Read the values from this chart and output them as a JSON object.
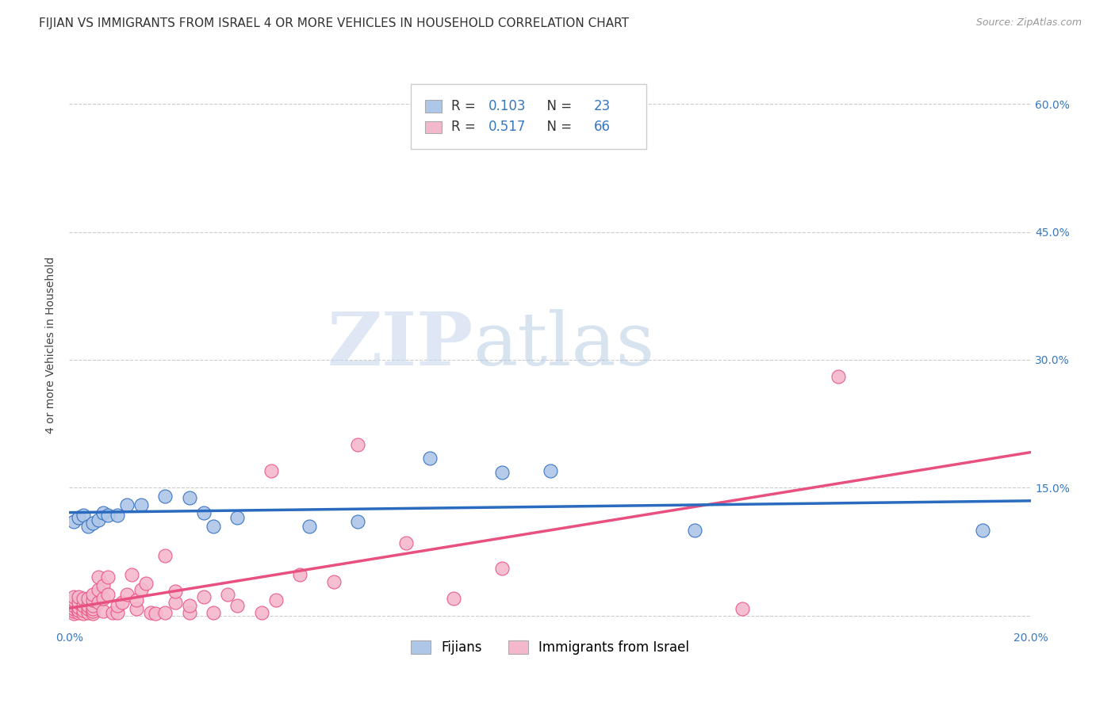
{
  "title": "FIJIAN VS IMMIGRANTS FROM ISRAEL 4 OR MORE VEHICLES IN HOUSEHOLD CORRELATION CHART",
  "source": "Source: ZipAtlas.com",
  "ylabel": "4 or more Vehicles in Household",
  "xlim": [
    0.0,
    0.2
  ],
  "ylim": [
    -0.015,
    0.65
  ],
  "xticks": [
    0.0,
    0.05,
    0.1,
    0.15,
    0.2
  ],
  "xticklabels": [
    "0.0%",
    "",
    "",
    "",
    "20.0%"
  ],
  "yticks_right": [
    0.0,
    0.15,
    0.3,
    0.45,
    0.6
  ],
  "yticklabels_right": [
    "",
    "15.0%",
    "30.0%",
    "45.0%",
    "60.0%"
  ],
  "fijian_R": 0.103,
  "fijian_N": 23,
  "israel_R": 0.517,
  "israel_N": 66,
  "fijian_color": "#aec6e8",
  "israel_color": "#f4b8cc",
  "fijian_line_color": "#2b6bbf",
  "israel_line_color": "#e85080",
  "fijian_x": [
    0.001,
    0.002,
    0.003,
    0.004,
    0.005,
    0.006,
    0.007,
    0.008,
    0.01,
    0.012,
    0.015,
    0.02,
    0.025,
    0.028,
    0.03,
    0.035,
    0.05,
    0.06,
    0.075,
    0.09,
    0.1,
    0.13,
    0.19
  ],
  "fijian_y": [
    0.11,
    0.115,
    0.118,
    0.105,
    0.108,
    0.112,
    0.12,
    0.118,
    0.118,
    0.13,
    0.13,
    0.14,
    0.138,
    0.12,
    0.105,
    0.115,
    0.105,
    0.11,
    0.185,
    0.168,
    0.17,
    0.1,
    0.1
  ],
  "israel_x": [
    0.001,
    0.001,
    0.001,
    0.001,
    0.001,
    0.001,
    0.002,
    0.002,
    0.002,
    0.002,
    0.002,
    0.003,
    0.003,
    0.003,
    0.003,
    0.004,
    0.004,
    0.004,
    0.004,
    0.005,
    0.005,
    0.005,
    0.005,
    0.005,
    0.005,
    0.006,
    0.006,
    0.006,
    0.007,
    0.007,
    0.007,
    0.008,
    0.008,
    0.009,
    0.01,
    0.01,
    0.011,
    0.012,
    0.013,
    0.014,
    0.014,
    0.015,
    0.016,
    0.017,
    0.018,
    0.02,
    0.02,
    0.022,
    0.022,
    0.025,
    0.025,
    0.028,
    0.03,
    0.033,
    0.035,
    0.04,
    0.042,
    0.043,
    0.048,
    0.055,
    0.06,
    0.07,
    0.08,
    0.09,
    0.14,
    0.16
  ],
  "israel_y": [
    0.002,
    0.005,
    0.008,
    0.012,
    0.018,
    0.022,
    0.003,
    0.006,
    0.01,
    0.015,
    0.022,
    0.002,
    0.006,
    0.012,
    0.02,
    0.003,
    0.008,
    0.012,
    0.02,
    0.002,
    0.005,
    0.008,
    0.012,
    0.018,
    0.025,
    0.015,
    0.03,
    0.045,
    0.005,
    0.02,
    0.035,
    0.025,
    0.045,
    0.003,
    0.003,
    0.012,
    0.015,
    0.025,
    0.048,
    0.008,
    0.018,
    0.03,
    0.038,
    0.003,
    0.002,
    0.003,
    0.07,
    0.015,
    0.028,
    0.003,
    0.012,
    0.022,
    0.003,
    0.025,
    0.012,
    0.003,
    0.17,
    0.018,
    0.048,
    0.04,
    0.2,
    0.085,
    0.02,
    0.055,
    0.008,
    0.28
  ],
  "watermark_zip": "ZIP",
  "watermark_atlas": "atlas",
  "background_color": "#ffffff",
  "grid_color": "#cccccc",
  "title_fontsize": 11,
  "axis_label_fontsize": 10,
  "tick_fontsize": 10,
  "legend_fontsize": 12
}
